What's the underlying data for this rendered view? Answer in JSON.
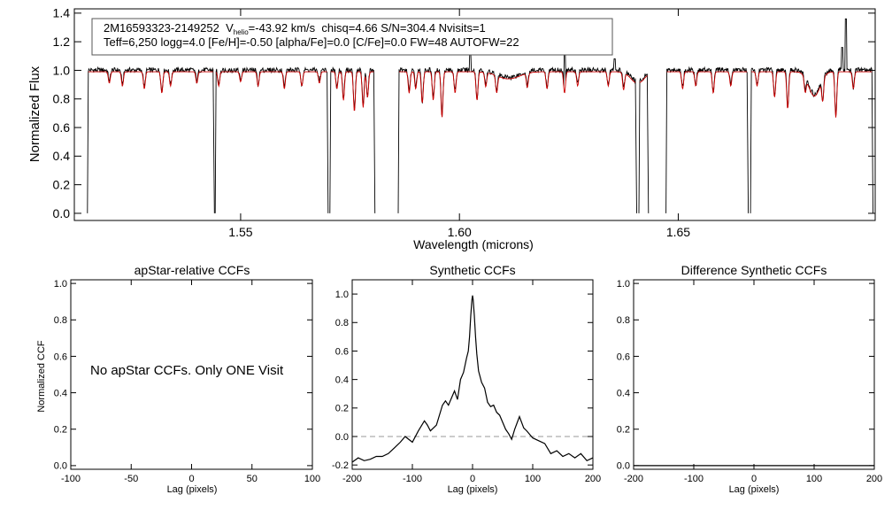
{
  "colors": {
    "axis": "#000000",
    "observed": "#000000",
    "model": "#cc0000",
    "zero_line": "#999999"
  },
  "chart_data": [
    {
      "id": "spectrum",
      "type": "line",
      "title_line1": {
        "star": "2M16593323-2149252",
        "vhelio_label": "V",
        "vhelio_sub": "helio",
        "vhelio_value": "=-43.92 km/s",
        "rest": "chisq=4.66  S/N=304.4  Nvisits=1"
      },
      "title_line2": "Teff=6,250 logg=4.0 [Fe/H]=-0.50 [alpha/Fe]=0.0 [C/Fe]=0.0 FW=48 AUTOFW=22",
      "xlabel": "Wavelength (microns)",
      "ylabel": "Normalized Flux",
      "xlim": [
        1.512,
        1.695
      ],
      "ylim": [
        -0.05,
        1.43
      ],
      "xticks": [
        {
          "v": 1.55,
          "label": "1.55"
        },
        {
          "v": 1.6,
          "label": "1.60"
        },
        {
          "v": 1.65,
          "label": "1.65"
        }
      ],
      "yticks": [
        {
          "v": 0.0,
          "label": "0.0"
        },
        {
          "v": 0.2,
          "label": "0.2"
        },
        {
          "v": 0.4,
          "label": "0.4"
        },
        {
          "v": 0.6,
          "label": "0.6"
        },
        {
          "v": 0.8,
          "label": "0.8"
        },
        {
          "v": 1.0,
          "label": "1.0"
        },
        {
          "v": 1.2,
          "label": "1.2"
        },
        {
          "v": 1.4,
          "label": "1.4"
        }
      ],
      "chips": [
        [
          1.515,
          1.544
        ],
        [
          1.5442,
          1.57
        ],
        [
          1.5704,
          1.5807
        ],
        [
          1.586,
          1.6405
        ],
        [
          1.641,
          1.6432
        ],
        [
          1.6472,
          1.666
        ],
        [
          1.6665,
          1.6945
        ]
      ],
      "continuum": 0.99,
      "broad_features": [
        {
          "center": 1.6112,
          "depth": 0.05,
          "width": 0.0025
        },
        {
          "center": 1.6407,
          "depth": 0.08,
          "width": 0.0015
        },
        {
          "center": 1.6811,
          "depth": 0.17,
          "width": 0.0013
        }
      ],
      "absorption_lines": [
        {
          "w": 1.52,
          "d": 0.08
        },
        {
          "w": 1.523,
          "d": 0.1
        },
        {
          "w": 1.528,
          "d": 0.12
        },
        {
          "w": 1.532,
          "d": 0.15
        },
        {
          "w": 1.534,
          "d": 0.1
        },
        {
          "w": 1.54,
          "d": 0.08
        },
        {
          "w": 1.545,
          "d": 0.1
        },
        {
          "w": 1.55,
          "d": 0.07
        },
        {
          "w": 1.554,
          "d": 0.1
        },
        {
          "w": 1.56,
          "d": 0.12
        },
        {
          "w": 1.564,
          "d": 0.1
        },
        {
          "w": 1.568,
          "d": 0.08
        },
        {
          "w": 1.572,
          "d": 0.12
        },
        {
          "w": 1.5735,
          "d": 0.2
        },
        {
          "w": 1.576,
          "d": 0.28
        },
        {
          "w": 1.578,
          "d": 0.25
        },
        {
          "w": 1.579,
          "d": 0.18
        },
        {
          "w": 1.5885,
          "d": 0.15
        },
        {
          "w": 1.59,
          "d": 0.12
        },
        {
          "w": 1.5915,
          "d": 0.22
        },
        {
          "w": 1.594,
          "d": 0.2
        },
        {
          "w": 1.596,
          "d": 0.32
        },
        {
          "w": 1.599,
          "d": 0.15
        },
        {
          "w": 1.604,
          "d": 0.2
        },
        {
          "w": 1.606,
          "d": 0.1
        },
        {
          "w": 1.6085,
          "d": 0.12
        },
        {
          "w": 1.6155,
          "d": 0.1
        },
        {
          "w": 1.62,
          "d": 0.12
        },
        {
          "w": 1.624,
          "d": 0.15
        },
        {
          "w": 1.627,
          "d": 0.1
        },
        {
          "w": 1.634,
          "d": 0.1
        },
        {
          "w": 1.6375,
          "d": 0.12
        },
        {
          "w": 1.651,
          "d": 0.12
        },
        {
          "w": 1.654,
          "d": 0.1
        },
        {
          "w": 1.658,
          "d": 0.15
        },
        {
          "w": 1.662,
          "d": 0.1
        },
        {
          "w": 1.668,
          "d": 0.1
        },
        {
          "w": 1.672,
          "d": 0.18
        },
        {
          "w": 1.675,
          "d": 0.26
        },
        {
          "w": 1.679,
          "d": 0.1
        },
        {
          "w": 1.683,
          "d": 0.15
        },
        {
          "w": 1.686,
          "d": 0.32
        },
        {
          "w": 1.69,
          "d": 0.12
        }
      ],
      "emission_spikes": [
        {
          "w": 1.6025,
          "h": 1.12
        },
        {
          "w": 1.624,
          "h": 1.12
        },
        {
          "w": 1.6355,
          "h": 1.08
        },
        {
          "w": 1.6875,
          "h": 1.16
        },
        {
          "w": 1.6883,
          "h": 1.36
        }
      ]
    },
    {
      "id": "apstar-ccf",
      "type": "line",
      "title": "apStar-relative CCFs",
      "xlabel": "Lag (pixels)",
      "ylabel": "Normalized CCF",
      "xlim": [
        -100,
        100
      ],
      "ylim": [
        -0.02,
        1.02
      ],
      "xticks": [
        {
          "v": -100,
          "label": "-100"
        },
        {
          "v": -50,
          "label": "-50"
        },
        {
          "v": 0,
          "label": "0"
        },
        {
          "v": 50,
          "label": "50"
        },
        {
          "v": 100,
          "label": "100"
        }
      ],
      "yticks": [
        {
          "v": 0.0,
          "label": "0.0"
        },
        {
          "v": 0.2,
          "label": "0.2"
        },
        {
          "v": 0.4,
          "label": "0.4"
        },
        {
          "v": 0.6,
          "label": "0.6"
        },
        {
          "v": 0.8,
          "label": "0.8"
        },
        {
          "v": 1.0,
          "label": "1.0"
        }
      ],
      "message": "No apStar CCFs.  Only ONE Visit"
    },
    {
      "id": "synthetic-ccf",
      "type": "line",
      "title": "Synthetic CCFs",
      "xlabel": "Lag (pixels)",
      "xlim": [
        -200,
        200
      ],
      "ylim": [
        -0.23,
        1.1
      ],
      "xticks": [
        {
          "v": -200,
          "label": "-200"
        },
        {
          "v": -100,
          "label": "-100"
        },
        {
          "v": 0,
          "label": "0"
        },
        {
          "v": 100,
          "label": "100"
        },
        {
          "v": 200,
          "label": "200"
        }
      ],
      "yticks": [
        {
          "v": -0.2,
          "label": "-0.2"
        },
        {
          "v": 0.0,
          "label": "0.0"
        },
        {
          "v": 0.2,
          "label": "0.2"
        },
        {
          "v": 0.4,
          "label": "0.4"
        },
        {
          "v": 0.6,
          "label": "0.6"
        },
        {
          "v": 0.8,
          "label": "0.8"
        },
        {
          "v": 1.0,
          "label": "1.0"
        }
      ],
      "zero_line": 0.0,
      "x": [
        -200,
        -190,
        -180,
        -170,
        -160,
        -150,
        -140,
        -130,
        -120,
        -112,
        -100,
        -90,
        -80,
        -75,
        -70,
        -60,
        -50,
        -45,
        -40,
        -35,
        -30,
        -25,
        -20,
        -15,
        -10,
        -7,
        -5,
        -3,
        -1,
        0,
        1,
        3,
        5,
        7,
        10,
        15,
        20,
        25,
        30,
        35,
        40,
        45,
        50,
        55,
        60,
        65,
        70,
        78,
        85,
        90,
        100,
        110,
        120,
        130,
        140,
        150,
        160,
        170,
        180,
        190,
        200
      ],
      "y": [
        -0.18,
        -0.15,
        -0.17,
        -0.16,
        -0.14,
        -0.14,
        -0.12,
        -0.08,
        -0.04,
        0.0,
        -0.04,
        0.04,
        0.11,
        0.08,
        0.04,
        0.08,
        0.22,
        0.25,
        0.22,
        0.27,
        0.32,
        0.26,
        0.4,
        0.45,
        0.55,
        0.6,
        0.7,
        0.85,
        0.96,
        0.99,
        0.96,
        0.85,
        0.7,
        0.58,
        0.46,
        0.38,
        0.34,
        0.24,
        0.21,
        0.22,
        0.17,
        0.15,
        0.1,
        0.05,
        0.02,
        -0.02,
        0.05,
        0.14,
        0.06,
        0.04,
        -0.01,
        -0.03,
        -0.05,
        -0.12,
        -0.1,
        -0.14,
        -0.12,
        -0.15,
        -0.12,
        -0.17,
        -0.15
      ]
    },
    {
      "id": "difference-ccf",
      "type": "line",
      "title": "Difference Synthetic CCFs",
      "xlabel": "Lag (pixels)",
      "xlim": [
        -200,
        200
      ],
      "ylim": [
        -0.02,
        1.02
      ],
      "xticks": [
        {
          "v": -200,
          "label": "-200"
        },
        {
          "v": -100,
          "label": "-100"
        },
        {
          "v": 0,
          "label": "0"
        },
        {
          "v": 100,
          "label": "100"
        },
        {
          "v": 200,
          "label": "200"
        }
      ],
      "yticks": [
        {
          "v": 0.0,
          "label": "0.0"
        },
        {
          "v": 0.2,
          "label": "0.2"
        },
        {
          "v": 0.4,
          "label": "0.4"
        },
        {
          "v": 0.6,
          "label": "0.6"
        },
        {
          "v": 0.8,
          "label": "0.8"
        },
        {
          "v": 1.0,
          "label": "1.0"
        }
      ],
      "x": [
        -200,
        200
      ],
      "y": [
        0.0,
        0.0
      ]
    }
  ]
}
